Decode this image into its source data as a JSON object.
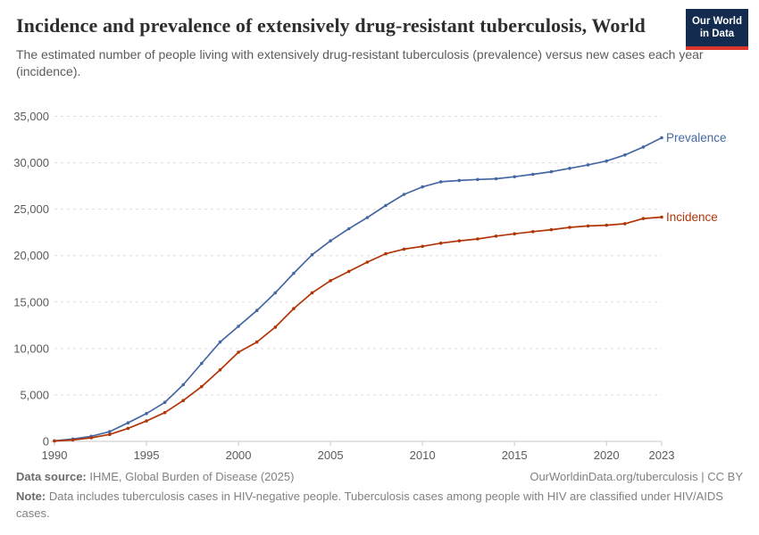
{
  "header": {
    "title": "Incidence and prevalence of extensively drug-resistant tuberculosis, World",
    "subtitle": "The estimated number of people living with extensively drug-resistant tuberculosis (prevalence) versus new cases each year (incidence)."
  },
  "logo": {
    "line1": "Our World",
    "line2": "in Data",
    "bg_color": "#122B4F",
    "bar_color": "#DD352C"
  },
  "chart_data": {
    "type": "line",
    "title": "Incidence and prevalence of extensively drug-resistant tuberculosis, World",
    "xlabel": "",
    "ylabel": "",
    "ylim": [
      0,
      35000
    ],
    "xlim": [
      1990,
      2023
    ],
    "grid": "horizontal-dashed",
    "legend_position": "line-end-labels",
    "x": [
      1990,
      1991,
      1992,
      1993,
      1994,
      1995,
      1996,
      1997,
      1998,
      1999,
      2000,
      2001,
      2002,
      2003,
      2004,
      2005,
      2006,
      2007,
      2008,
      2009,
      2010,
      2011,
      2012,
      2013,
      2014,
      2015,
      2016,
      2017,
      2018,
      2019,
      2020,
      2021,
      2022,
      2023
    ],
    "series": [
      {
        "name": "Prevalence",
        "color": "#4568A2",
        "values": [
          60,
          250,
          550,
          1050,
          2000,
          3000,
          4200,
          6100,
          8400,
          10700,
          12400,
          14100,
          16000,
          18100,
          20100,
          21600,
          22900,
          24100,
          25400,
          26600,
          27400,
          27950,
          28100,
          28200,
          28280,
          28500,
          28760,
          29040,
          29400,
          29780,
          30190,
          30840,
          31700,
          32700
        ]
      },
      {
        "name": "Incidence",
        "color": "#B13507",
        "values": [
          40,
          150,
          380,
          750,
          1400,
          2200,
          3100,
          4400,
          5900,
          7700,
          9600,
          10700,
          12300,
          14300,
          16000,
          17300,
          18300,
          19300,
          20200,
          20700,
          21000,
          21350,
          21600,
          21800,
          22100,
          22350,
          22580,
          22800,
          23050,
          23200,
          23280,
          23440,
          24000,
          24150
        ]
      }
    ],
    "y_ticks": [
      0,
      5000,
      10000,
      15000,
      20000,
      25000,
      30000,
      35000
    ],
    "y_tick_labels": [
      "0",
      "5,000",
      "10,000",
      "15,000",
      "20,000",
      "25,000",
      "30,000",
      "35,000"
    ],
    "x_ticks": [
      1990,
      1995,
      2000,
      2005,
      2010,
      2015,
      2020,
      2023
    ],
    "x_tick_labels": [
      "1990",
      "1995",
      "2000",
      "2005",
      "2010",
      "2015",
      "2020",
      "2023"
    ]
  },
  "footer": {
    "source_label": "Data source:",
    "source_value": "IHME, Global Burden of Disease (2025)",
    "credit": "OurWorldinData.org/tuberculosis | CC BY",
    "note_label": "Note:",
    "note_value": "Data includes tuberculosis cases in HIV-negative people. Tuberculosis cases among people with HIV are classified under HIV/AIDS cases."
  }
}
